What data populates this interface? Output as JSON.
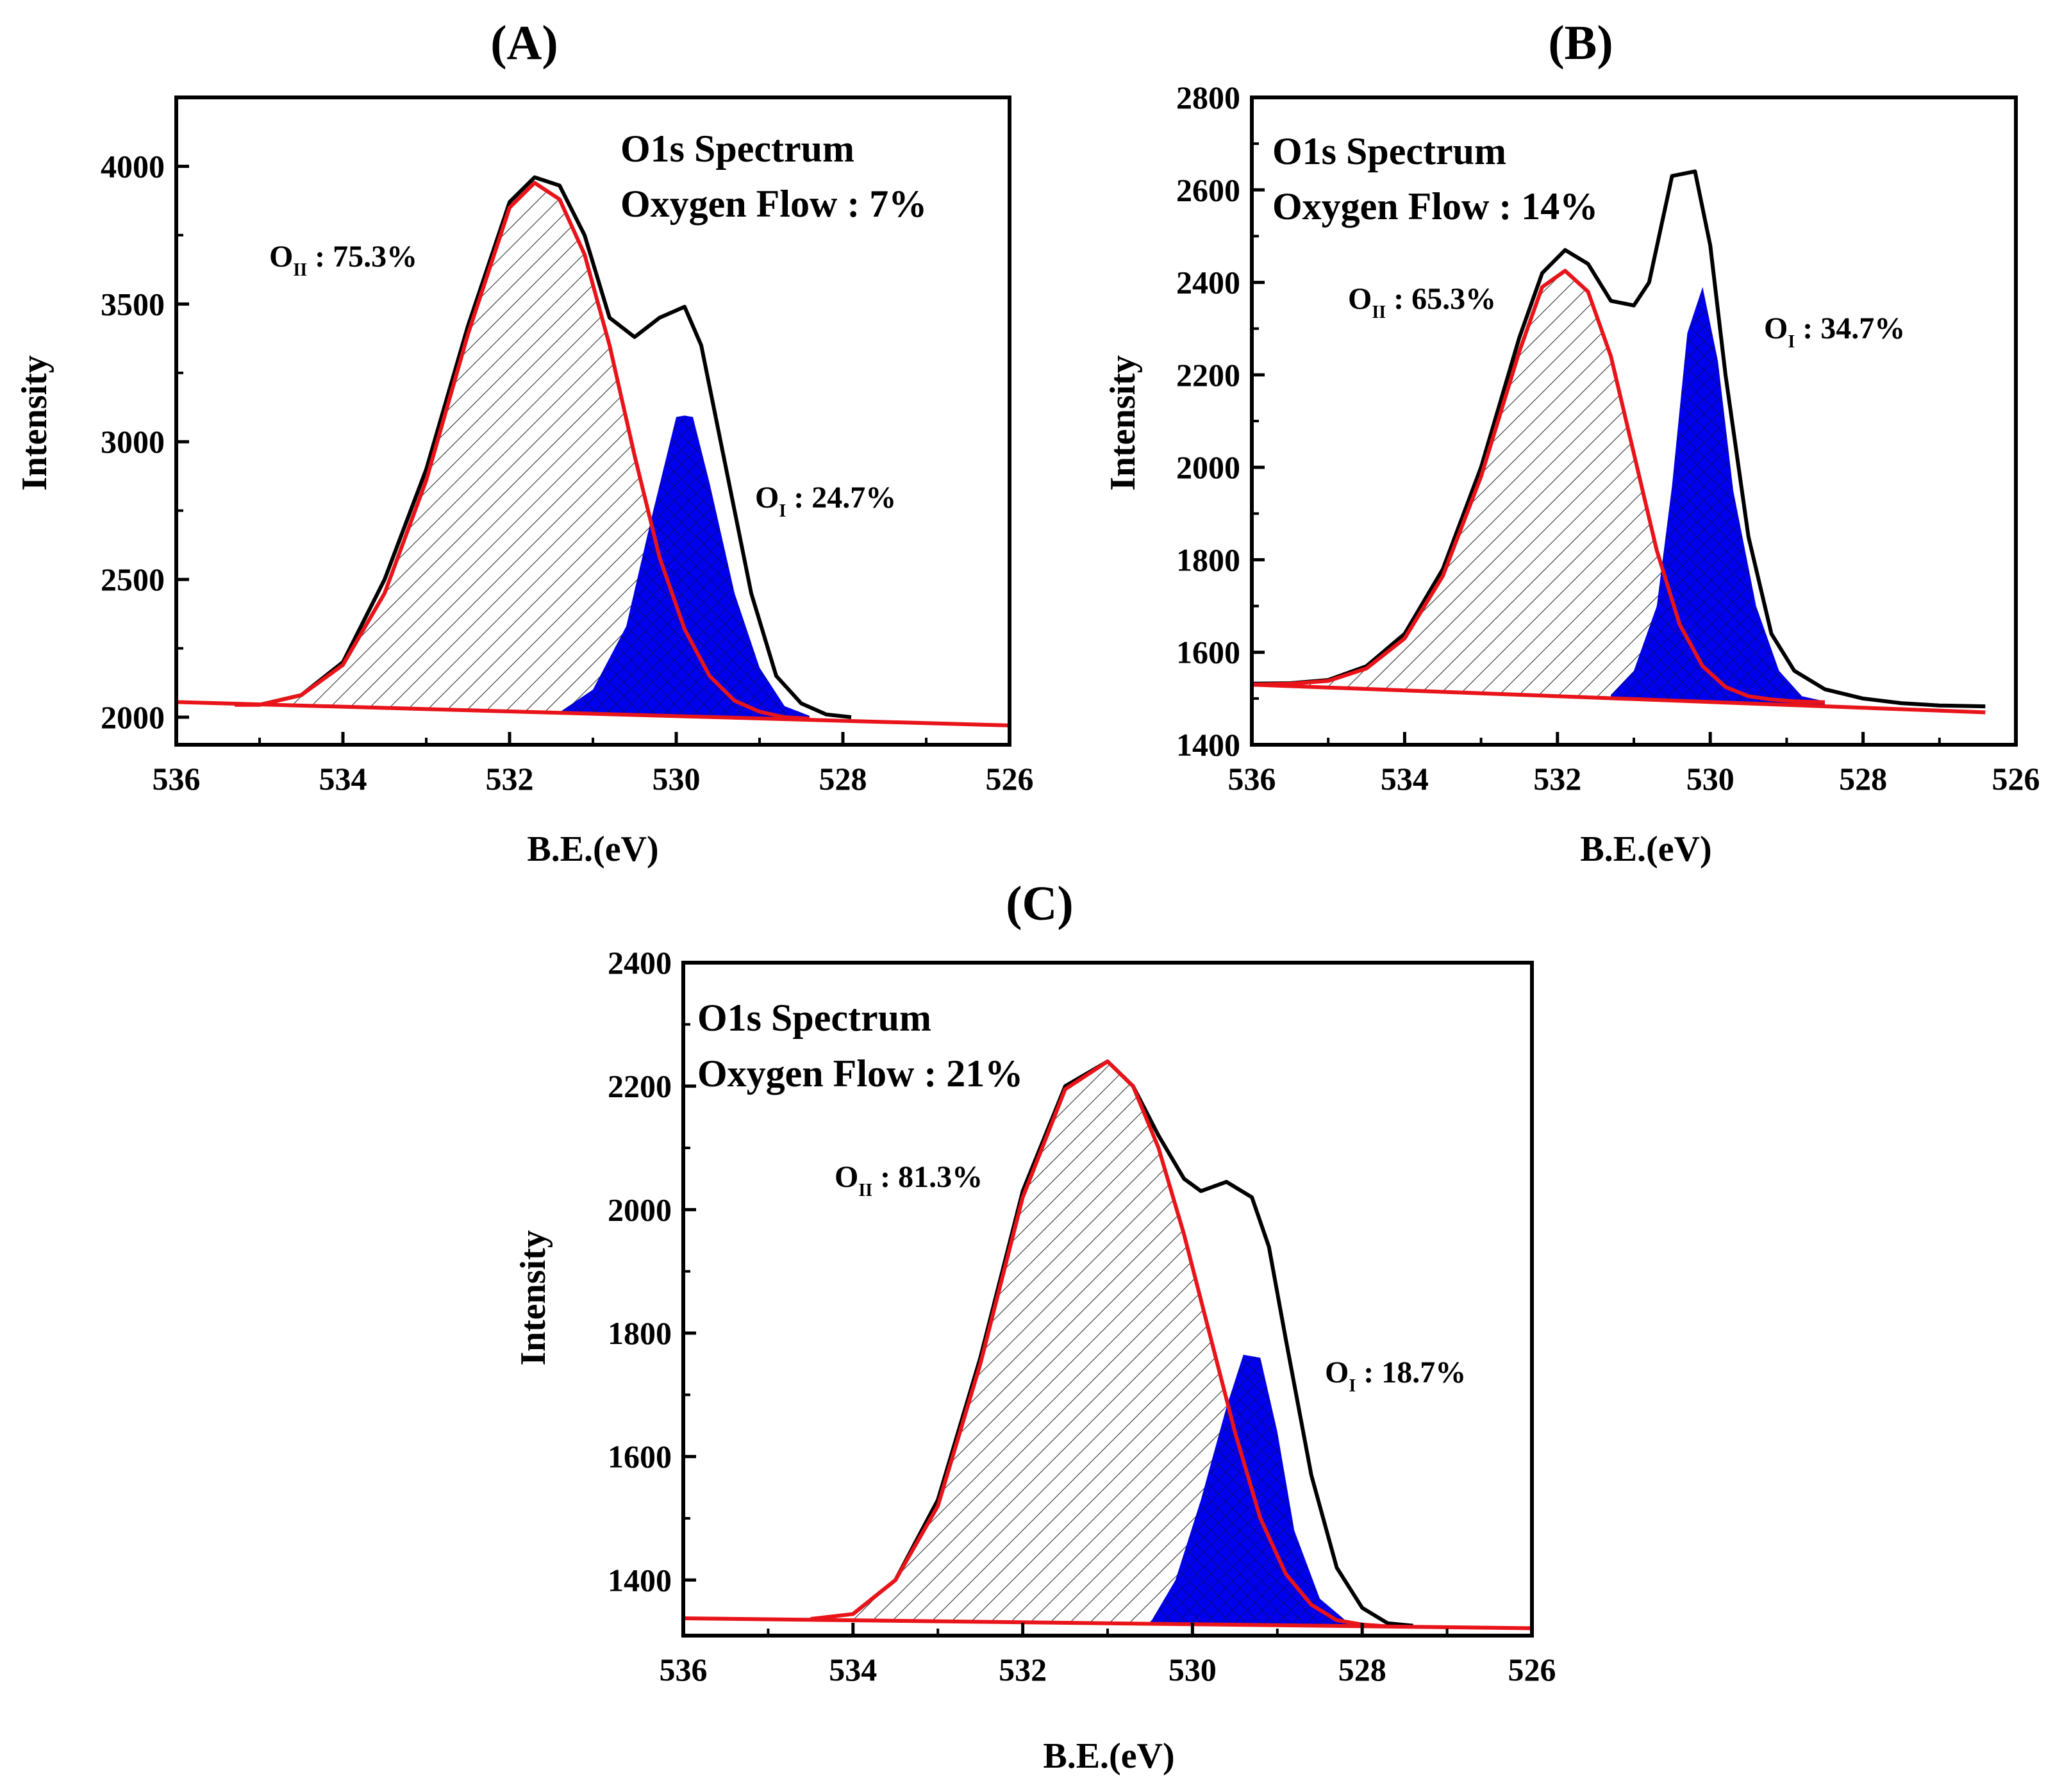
{
  "chart_data": [
    {
      "id": "A",
      "type": "line",
      "panel_label": "(A)",
      "title_line1": "O1s Spectrum",
      "title_line2": "Oxygen Flow : 7%",
      "xlabel": "B.E.(eV)",
      "ylabel": "Intensity",
      "xlim": [
        536,
        526
      ],
      "ylim": [
        1900,
        4250
      ],
      "xticks": [
        536,
        534,
        532,
        530,
        528,
        526
      ],
      "yticks": [
        2000,
        2500,
        3000,
        3500,
        4000
      ],
      "baseline": {
        "x": [
          536,
          526
        ],
        "y": [
          2055,
          1970
        ]
      },
      "envelope": {
        "x": [
          535.0,
          534.5,
          534.0,
          533.5,
          533.0,
          532.5,
          532.0,
          531.7,
          531.4,
          531.1,
          530.8,
          530.5,
          530.2,
          529.9,
          529.7,
          529.4,
          529.1,
          528.8,
          528.5,
          528.2,
          527.9
        ],
        "y": [
          2045,
          2080,
          2200,
          2500,
          2900,
          3420,
          3870,
          3960,
          3930,
          3750,
          3450,
          3380,
          3450,
          3490,
          3350,
          2900,
          2450,
          2150,
          2050,
          2010,
          2000
        ]
      },
      "components": [
        {
          "name": "OII",
          "label_main": "O",
          "label_sub": "II",
          "label_value": " : 75.3%",
          "style": "hatch",
          "x": [
            535.3,
            535.0,
            534.5,
            534.0,
            533.5,
            533.0,
            532.5,
            532.0,
            531.7,
            531.4,
            531.1,
            530.8,
            530.5,
            530.2,
            529.9,
            529.6,
            529.3,
            529.0,
            528.7,
            528.4
          ],
          "y": [
            2045,
            2045,
            2080,
            2190,
            2450,
            2860,
            3390,
            3850,
            3940,
            3880,
            3680,
            3350,
            2950,
            2580,
            2320,
            2150,
            2060,
            2020,
            2000,
            1995
          ]
        },
        {
          "name": "OI",
          "label_main": "O",
          "label_sub": "I",
          "label_value": " : 24.7%",
          "style": "blue",
          "x": [
            531.4,
            531.0,
            530.6,
            530.3,
            530.0,
            529.9,
            529.8,
            529.6,
            529.3,
            529.0,
            528.7,
            528.4
          ],
          "y": [
            2018,
            2100,
            2330,
            2720,
            3090,
            3095,
            3090,
            2850,
            2450,
            2180,
            2040,
            2005
          ]
        }
      ]
    },
    {
      "id": "B",
      "type": "line",
      "panel_label": "(B)",
      "title_line1": "O1s Spectrum",
      "title_line2": "Oxygen Flow : 14%",
      "xlabel": "B.E.(eV)",
      "ylabel": "Intensity",
      "xlim": [
        536,
        526
      ],
      "ylim": [
        1400,
        2800
      ],
      "xticks": [
        536,
        534,
        532,
        530,
        528,
        526
      ],
      "yticks": [
        1400,
        1600,
        1800,
        2000,
        2200,
        2400,
        2600,
        2800
      ],
      "baseline": {
        "x": [
          536,
          526.4
        ],
        "y": [
          1530,
          1470
        ]
      },
      "envelope": {
        "x": [
          536.0,
          535.5,
          535.0,
          534.5,
          534.0,
          533.5,
          533.0,
          532.5,
          532.2,
          531.9,
          531.6,
          531.3,
          531.0,
          530.8,
          530.5,
          530.2,
          530.0,
          529.8,
          529.5,
          529.2,
          528.9,
          528.5,
          528.0,
          527.5,
          527.0,
          526.4
        ],
        "y": [
          1532,
          1533,
          1540,
          1570,
          1640,
          1780,
          2000,
          2280,
          2420,
          2470,
          2440,
          2360,
          2350,
          2400,
          2630,
          2640,
          2480,
          2200,
          1850,
          1640,
          1560,
          1520,
          1500,
          1490,
          1485,
          1483
        ]
      },
      "components": [
        {
          "name": "OII",
          "label_main": "O",
          "label_sub": "II",
          "label_value": " : 65.3%",
          "style": "hatch",
          "x": [
            536.0,
            535.5,
            535.0,
            534.5,
            534.0,
            533.5,
            533.0,
            532.5,
            532.2,
            531.9,
            531.6,
            531.3,
            531.0,
            530.7,
            530.4,
            530.1,
            529.8,
            529.5,
            529.2,
            528.9,
            528.5
          ],
          "y": [
            1530,
            1532,
            1538,
            1565,
            1630,
            1765,
            1980,
            2250,
            2390,
            2425,
            2380,
            2240,
            2030,
            1820,
            1660,
            1570,
            1525,
            1505,
            1498,
            1494,
            1492
          ]
        },
        {
          "name": "OI",
          "label_main": "O",
          "label_sub": "I",
          "label_value": " : 34.7%",
          "style": "blue",
          "x": [
            531.3,
            531.0,
            530.7,
            530.5,
            530.3,
            530.1,
            529.9,
            529.7,
            529.4,
            529.1,
            528.8,
            528.5
          ],
          "y": [
            1508,
            1560,
            1700,
            1960,
            2290,
            2390,
            2230,
            1950,
            1700,
            1560,
            1505,
            1494
          ]
        }
      ]
    },
    {
      "id": "C",
      "type": "line",
      "panel_label": "(C)",
      "title_line1": "O1s Spectrum",
      "title_line2": "Oxygen Flow : 21%",
      "xlabel": "B.E.(eV)",
      "ylabel": "Intensity",
      "xlim": [
        536,
        526
      ],
      "ylim": [
        1310,
        2400
      ],
      "xticks": [
        536,
        534,
        532,
        530,
        528,
        526
      ],
      "yticks": [
        1400,
        1600,
        1800,
        2000,
        2200,
        2400
      ],
      "baseline": {
        "x": [
          536,
          526
        ],
        "y": [
          1338,
          1322
        ]
      },
      "envelope": {
        "x": [
          534.0,
          533.5,
          533.0,
          532.5,
          532.0,
          531.5,
          531.0,
          530.7,
          530.4,
          530.1,
          529.9,
          529.6,
          529.3,
          529.1,
          528.9,
          528.6,
          528.3,
          528.0,
          527.7,
          527.4
        ],
        "y": [
          1345,
          1400,
          1530,
          1760,
          2030,
          2200,
          2240,
          2200,
          2120,
          2050,
          2030,
          2045,
          2020,
          1940,
          1790,
          1570,
          1420,
          1355,
          1330,
          1326
        ]
      },
      "components": [
        {
          "name": "OII",
          "label_main": "O",
          "label_sub": "II",
          "label_value": " : 81.3%",
          "style": "hatch",
          "x": [
            534.5,
            534.0,
            533.5,
            533.0,
            532.5,
            532.0,
            531.5,
            531.0,
            530.7,
            530.4,
            530.1,
            529.8,
            529.5,
            529.2,
            528.9,
            528.6,
            528.3,
            528.0,
            527.7
          ],
          "y": [
            1337,
            1345,
            1400,
            1520,
            1750,
            2020,
            2195,
            2240,
            2200,
            2100,
            1960,
            1800,
            1640,
            1500,
            1410,
            1360,
            1335,
            1328,
            1325
          ]
        },
        {
          "name": "OI",
          "label_main": "O",
          "label_sub": "I",
          "label_value": " : 18.7%",
          "style": "blue",
          "x": [
            530.5,
            530.2,
            529.9,
            529.6,
            529.4,
            529.2,
            529.0,
            528.8,
            528.5,
            528.2,
            527.9
          ],
          "y": [
            1330,
            1400,
            1530,
            1680,
            1765,
            1760,
            1640,
            1480,
            1370,
            1335,
            1326
          ]
        }
      ]
    }
  ]
}
